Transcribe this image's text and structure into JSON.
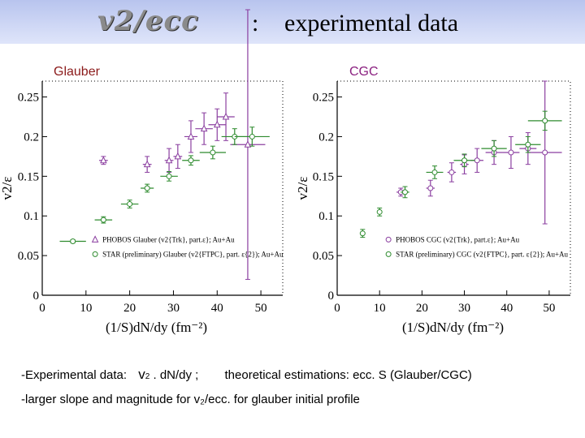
{
  "header": {
    "logo_text": "v2/ecc",
    "colon": ":",
    "title": "experimental data"
  },
  "chart_data": [
    {
      "type": "scatter",
      "panel_label": "Glauber",
      "xlabel": "(1/S)dN/dy (fm^-2)",
      "ylabel": "v2/ε",
      "xlim": [
        0,
        55
      ],
      "ylim": [
        0,
        0.27
      ],
      "xticks": [
        "0",
        "10",
        "20",
        "30",
        "40",
        "50"
      ],
      "yticks": [
        "0",
        "0.05",
        "0.1",
        "0.15",
        "0.2",
        "0.25"
      ],
      "series": [
        {
          "name": "PHOBOS Glauber (v2{Trk}, part.ε}; Au+Au",
          "color": "#8b3fa0",
          "marker": "triangle",
          "points": [
            {
              "x": 14,
              "y": 0.17,
              "xerr": 1,
              "yerr": 0.005
            },
            {
              "x": 24,
              "y": 0.165,
              "xerr": 1,
              "yerr": 0.01
            },
            {
              "x": 29,
              "y": 0.17,
              "xerr": 1,
              "yerr": 0.015
            },
            {
              "x": 31,
              "y": 0.175,
              "xerr": 1,
              "yerr": 0.015
            },
            {
              "x": 34,
              "y": 0.2,
              "xerr": 1.5,
              "yerr": 0.02
            },
            {
              "x": 37,
              "y": 0.21,
              "xerr": 2,
              "yerr": 0.02
            },
            {
              "x": 40,
              "y": 0.215,
              "xerr": 2,
              "yerr": 0.02
            },
            {
              "x": 42,
              "y": 0.225,
              "xerr": 2,
              "yerr": 0.03
            },
            {
              "x": 47,
              "y": 0.19,
              "xerr": 4,
              "yerr": 0.17
            }
          ]
        },
        {
          "name": "STAR (preliminary) Glauber (v2{FTPC}, part. ε{2}); Au+Au",
          "color": "#2e8b2e",
          "marker": "circle",
          "points": [
            {
              "x": 7,
              "y": 0.068,
              "xerr": 3,
              "yerr": 0.002
            },
            {
              "x": 14,
              "y": 0.095,
              "xerr": 2,
              "yerr": 0.004
            },
            {
              "x": 20,
              "y": 0.115,
              "xerr": 2,
              "yerr": 0.005
            },
            {
              "x": 24,
              "y": 0.135,
              "xerr": 1.5,
              "yerr": 0.005
            },
            {
              "x": 29,
              "y": 0.15,
              "xerr": 2,
              "yerr": 0.006
            },
            {
              "x": 34,
              "y": 0.17,
              "xerr": 2,
              "yerr": 0.006
            },
            {
              "x": 39,
              "y": 0.18,
              "xerr": 3,
              "yerr": 0.008
            },
            {
              "x": 44,
              "y": 0.2,
              "xerr": 3,
              "yerr": 0.01
            },
            {
              "x": 48,
              "y": 0.2,
              "xerr": 4,
              "yerr": 0.012
            }
          ]
        }
      ]
    },
    {
      "type": "scatter",
      "panel_label": "CGC",
      "xlabel": "(1/S)dN/dy (fm^-2)",
      "ylabel": "v2/ε",
      "xlim": [
        0,
        55
      ],
      "ylim": [
        0,
        0.27
      ],
      "xticks": [
        "0",
        "10",
        "20",
        "30",
        "40",
        "50"
      ],
      "yticks": [
        "0",
        "0.05",
        "0.1",
        "0.15",
        "0.2",
        "0.25"
      ],
      "series": [
        {
          "name": "PHOBOS CGC (v2{Trk}, part.ε}; Au+Au",
          "color": "#8b3fa0",
          "marker": "circle",
          "points": [
            {
              "x": 15,
              "y": 0.13,
              "xerr": 1,
              "yerr": 0.005
            },
            {
              "x": 22,
              "y": 0.135,
              "xerr": 1,
              "yerr": 0.01
            },
            {
              "x": 27,
              "y": 0.155,
              "xerr": 1,
              "yerr": 0.012
            },
            {
              "x": 30,
              "y": 0.165,
              "xerr": 1,
              "yerr": 0.012
            },
            {
              "x": 33,
              "y": 0.17,
              "xerr": 1.5,
              "yerr": 0.015
            },
            {
              "x": 37,
              "y": 0.18,
              "xerr": 2,
              "yerr": 0.015
            },
            {
              "x": 41,
              "y": 0.18,
              "xerr": 2,
              "yerr": 0.02
            },
            {
              "x": 45,
              "y": 0.185,
              "xerr": 2,
              "yerr": 0.02
            },
            {
              "x": 49,
              "y": 0.18,
              "xerr": 4,
              "yerr": 0.09
            }
          ]
        },
        {
          "name": "STAR (preliminary) CGC (v2{FTPC}, part. ε{2}); Au+Au",
          "color": "#2e8b2e",
          "marker": "circle",
          "points": [
            {
              "x": 6,
              "y": 0.078,
              "xerr": 0.5,
              "yerr": 0.005
            },
            {
              "x": 10,
              "y": 0.105,
              "xerr": 0.5,
              "yerr": 0.005
            },
            {
              "x": 16,
              "y": 0.13,
              "xerr": 1,
              "yerr": 0.007
            },
            {
              "x": 23,
              "y": 0.155,
              "xerr": 2,
              "yerr": 0.008
            },
            {
              "x": 30,
              "y": 0.17,
              "xerr": 2.5,
              "yerr": 0.008
            },
            {
              "x": 37,
              "y": 0.185,
              "xerr": 3,
              "yerr": 0.01
            },
            {
              "x": 45,
              "y": 0.19,
              "xerr": 3,
              "yerr": 0.01
            },
            {
              "x": 49,
              "y": 0.22,
              "xerr": 4,
              "yerr": 0.012
            }
          ]
        }
      ]
    }
  ],
  "notes": {
    "line1_a": "-Experimental data:",
    "line1_v": "v",
    "line1_sub": "2",
    "line1_b": ". dN/dy ;",
    "line1_c": "theoretical estimations:  ecc.  S  (Glauber/CGC)",
    "line2": "-larger slope and magnitude for v₂/ecc. for glauber initial profile"
  }
}
